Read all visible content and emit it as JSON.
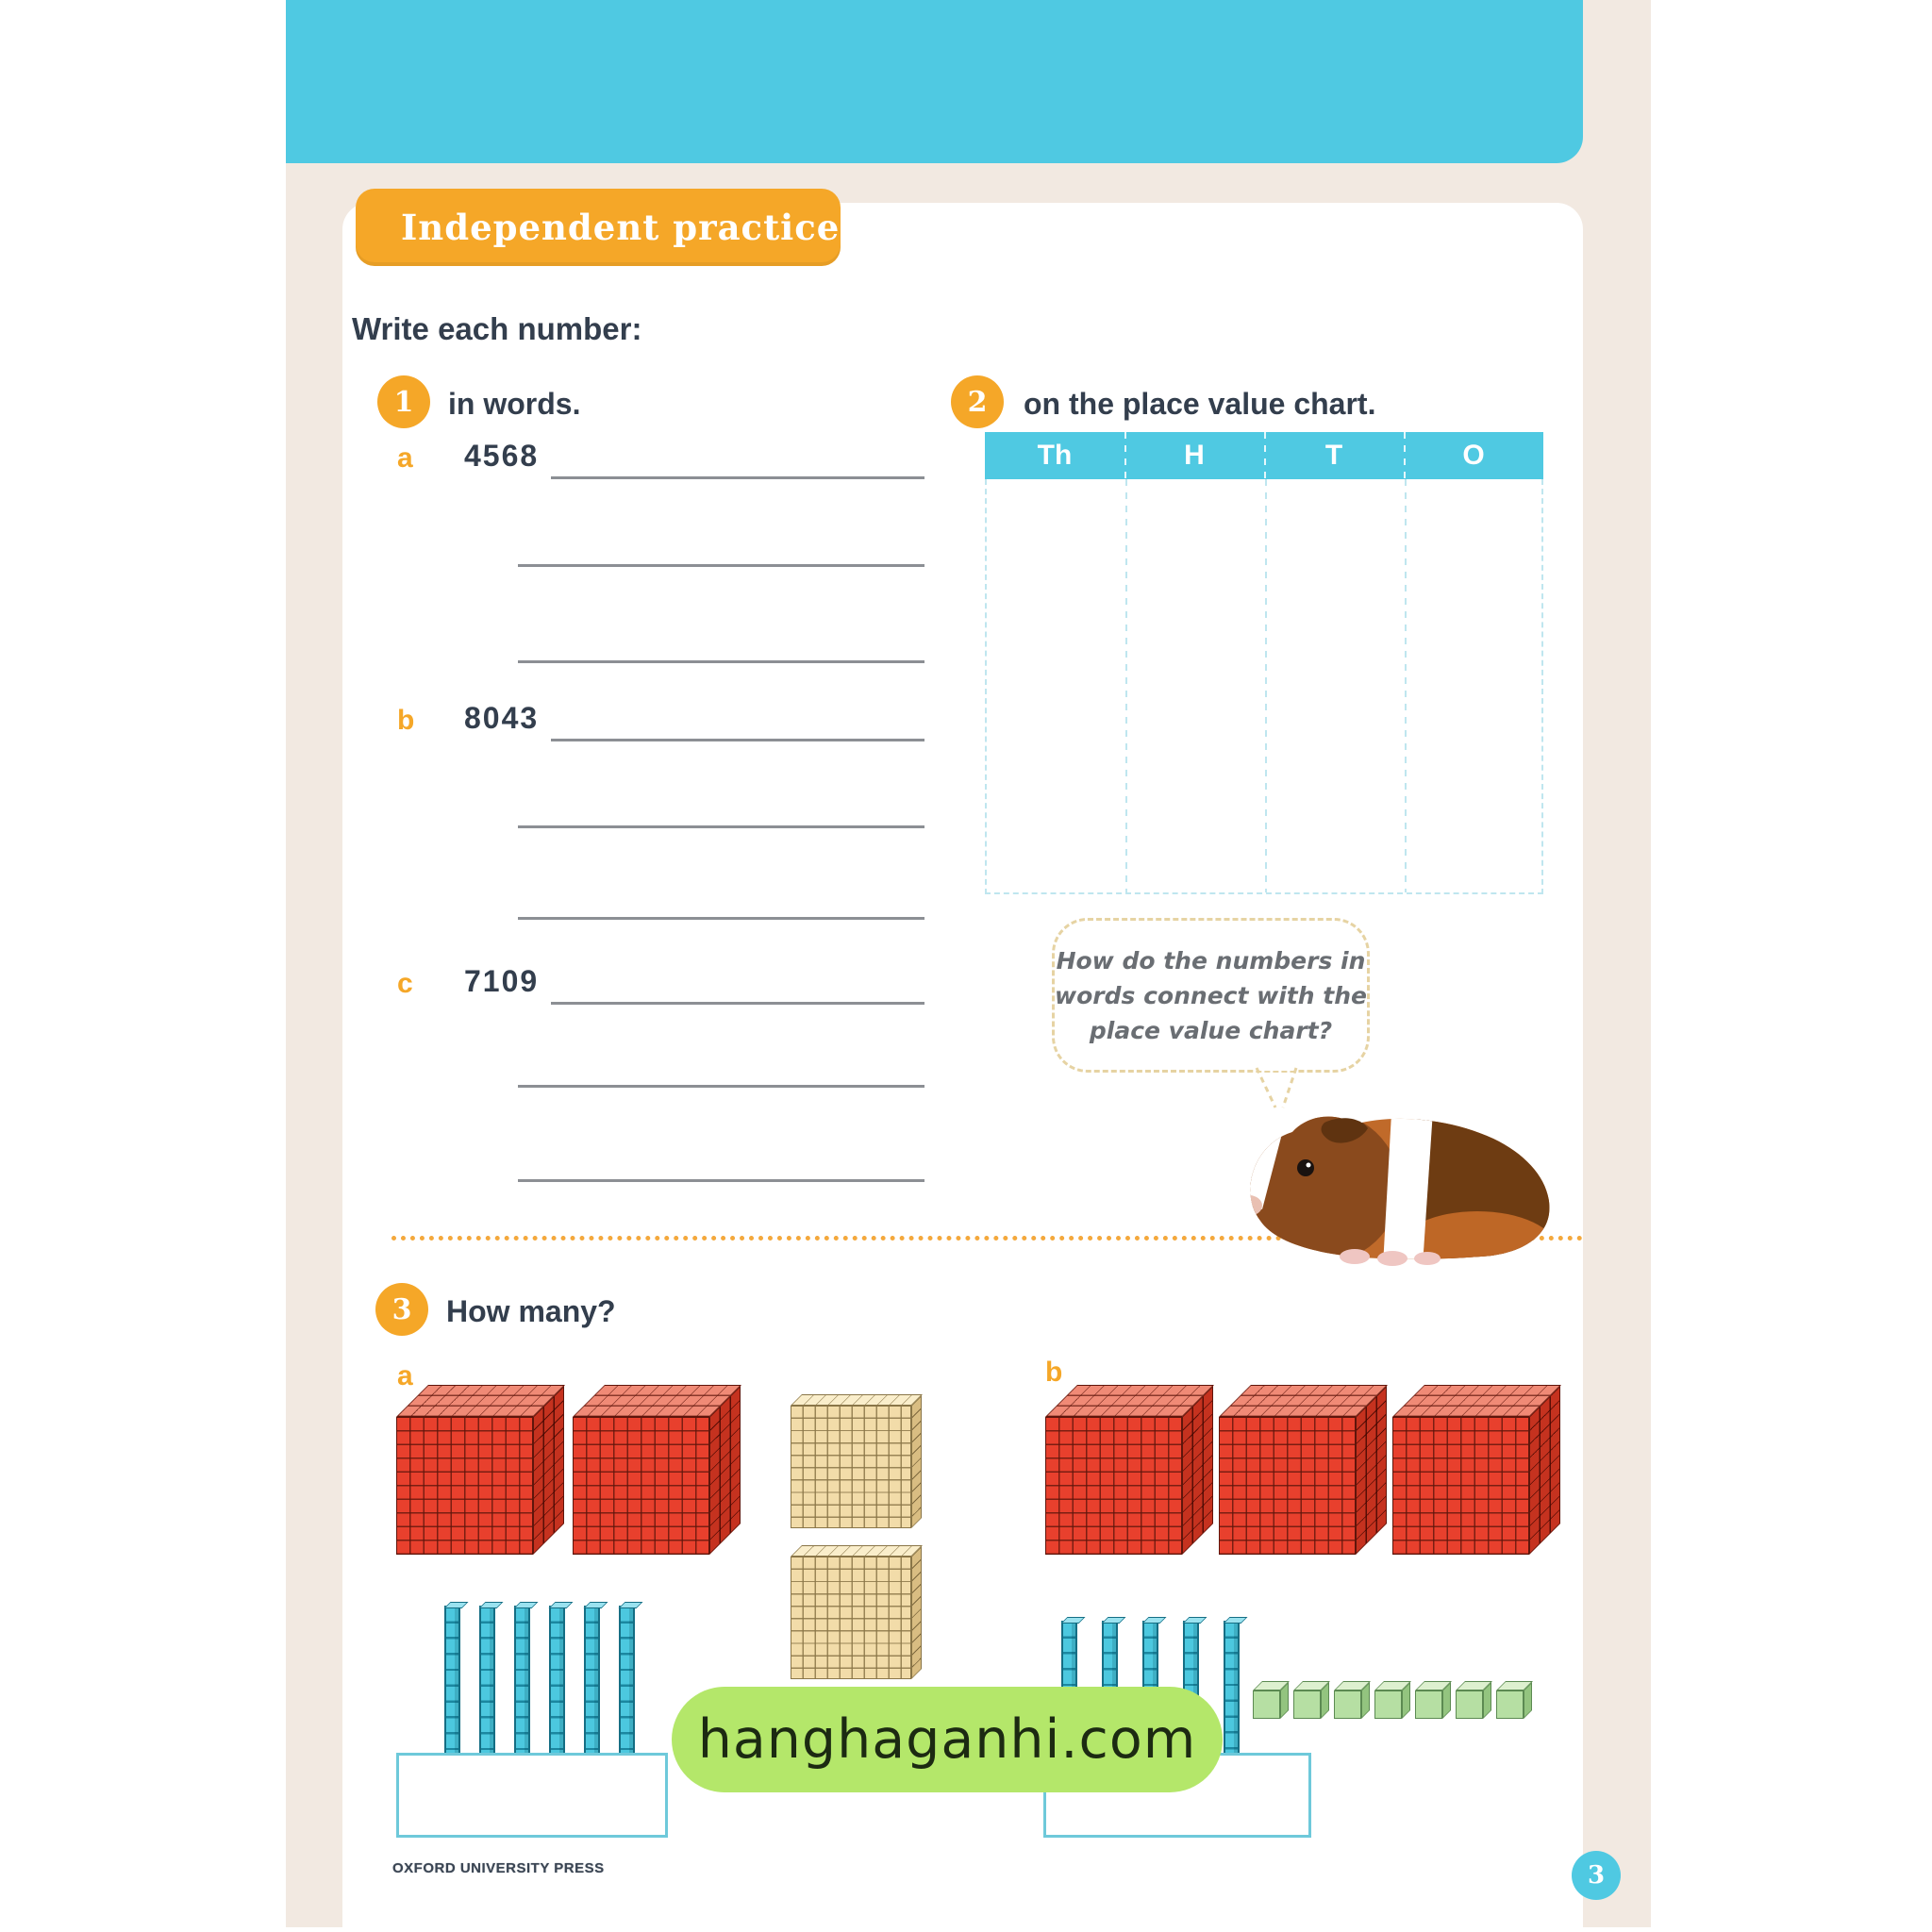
{
  "banner": {
    "label": "Independent practice"
  },
  "intro": "Write each number:",
  "exercise1": {
    "number": "1",
    "title": "in words.",
    "items": [
      {
        "label": "a",
        "value": "4568"
      },
      {
        "label": "b",
        "value": "8043"
      },
      {
        "label": "c",
        "value": "7109"
      }
    ]
  },
  "exercise2": {
    "number": "2",
    "title": "on the place value chart.",
    "chart": {
      "columns": [
        "Th",
        "H",
        "T",
        "O"
      ]
    }
  },
  "speech_bubble": {
    "line1": "How do the numbers in",
    "line2": "words connect with the",
    "line3": "place value chart?"
  },
  "exercise3": {
    "number": "3",
    "title": "How many?",
    "parts": [
      {
        "label": "a",
        "thousands": 2,
        "hundreds": 2,
        "tens": 6,
        "ones": 0
      },
      {
        "label": "b",
        "thousands": 3,
        "hundreds": 0,
        "tens": 5,
        "ones": 7
      }
    ]
  },
  "watermark": "hanghaganhi.com",
  "footer": "OXFORD UNIVERSITY PRESS",
  "page_number": "3",
  "colors": {
    "header_cyan": "#4FC9E2",
    "accent_orange": "#F5A728",
    "page_beige": "#F2E9E1",
    "watermark_green": "#B4E76A",
    "thousand_red": "#E8402D",
    "hundred_tan": "#F2DCA9",
    "ten_blue": "#3CC3DB",
    "one_green": "#B6DFA3"
  }
}
